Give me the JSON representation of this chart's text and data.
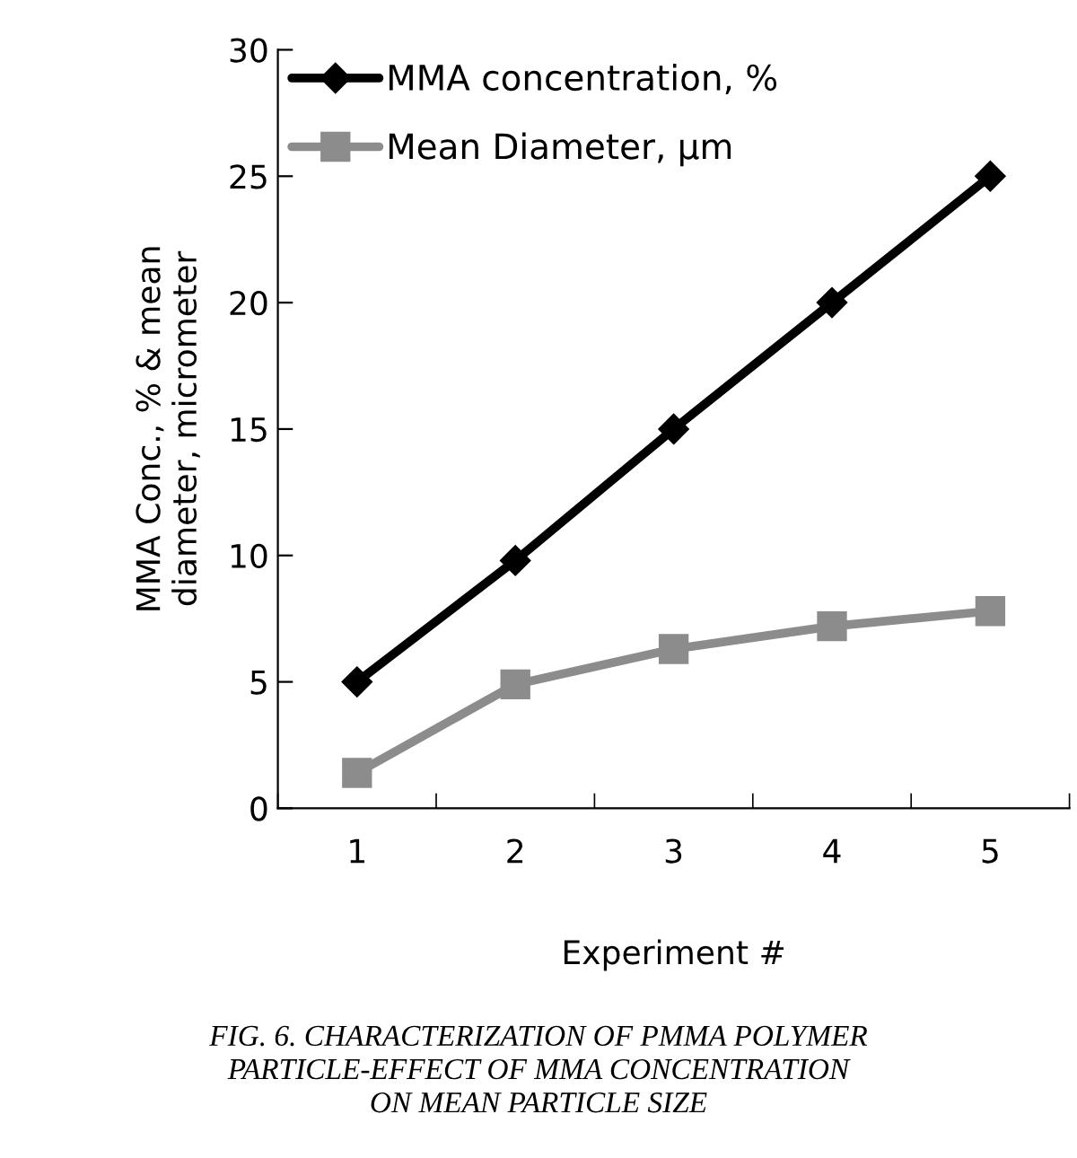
{
  "chart_data": {
    "type": "line",
    "xlabel": "Experiment #",
    "ylabel": "MMA Conc., % & mean\ndiameter, micrometer",
    "categories": [
      "1",
      "2",
      "3",
      "4",
      "5"
    ],
    "series": [
      {
        "name": "MMA concentration, %",
        "color": "#000000",
        "values": [
          5,
          9.8,
          15,
          20,
          25
        ],
        "marker": "diamond"
      },
      {
        "name": "Mean Diameter, µm",
        "color": "#8c8c8c",
        "values": [
          1.4,
          4.9,
          6.3,
          7.2,
          7.8
        ],
        "marker": "square"
      }
    ],
    "ylim": [
      0,
      30
    ],
    "yticks": [
      0,
      5,
      10,
      15,
      20,
      25,
      30
    ],
    "grid": false,
    "legend": "top left",
    "line_style": "solid",
    "annotations": [
      "FIG. 6. CHARACTERIZATION OF PMMA POLYMER\nPARTICLE-EFFECT OF MMA CONCENTRATION\nON MEAN PARTICLE SIZE"
    ]
  }
}
